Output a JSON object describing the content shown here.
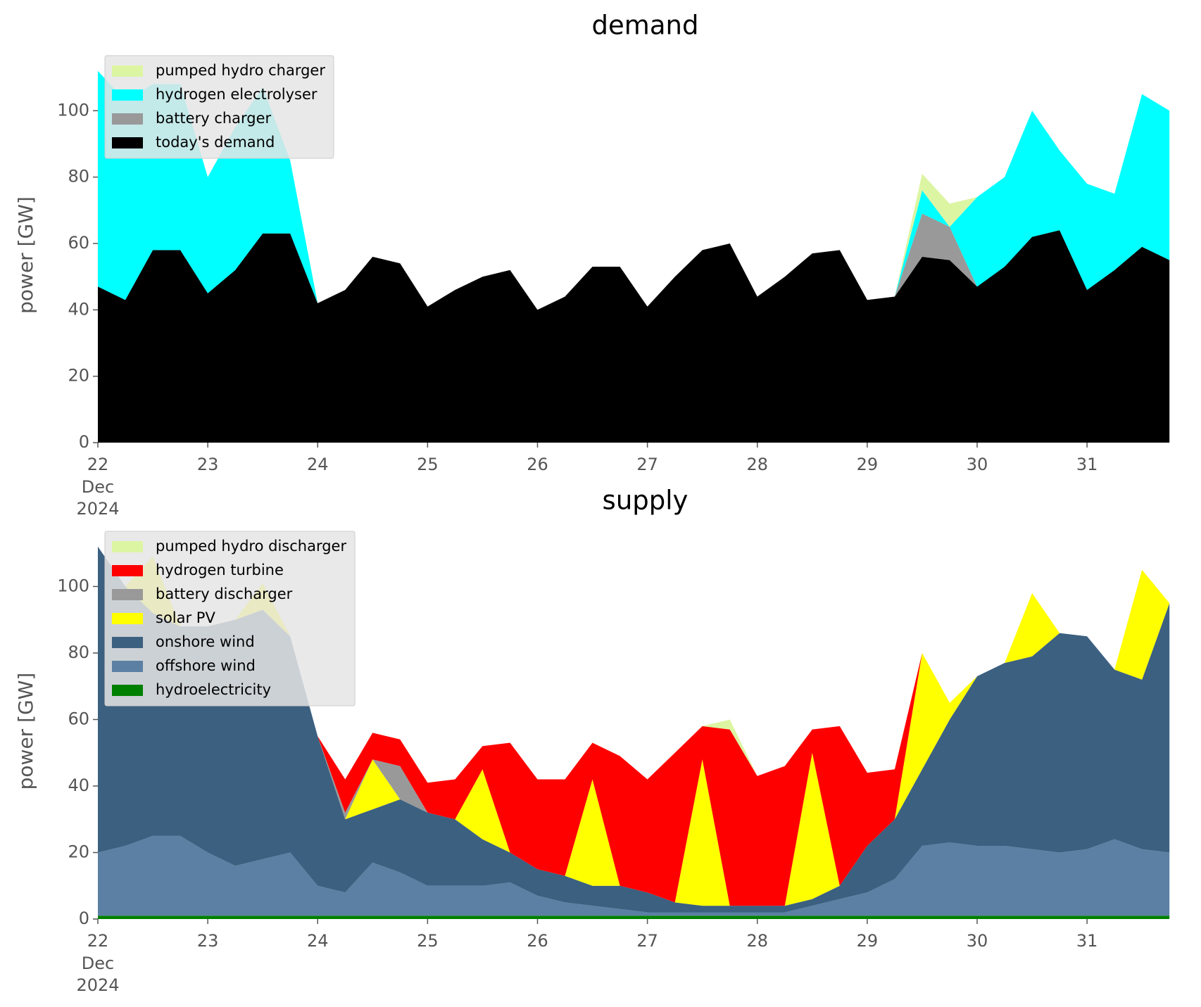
{
  "chart_data": [
    {
      "type": "area",
      "title": "demand",
      "ylabel": "power [GW]",
      "x": [
        22,
        22.25,
        22.5,
        22.75,
        23,
        23.25,
        23.5,
        23.75,
        24,
        24.25,
        24.5,
        24.75,
        25,
        25.25,
        25.5,
        25.75,
        26,
        26.25,
        26.5,
        26.75,
        27,
        27.25,
        27.5,
        27.75,
        28,
        28.25,
        28.5,
        28.75,
        29,
        29.25,
        29.5,
        29.75,
        30,
        30.25,
        30.5,
        30.75,
        31,
        31.25,
        31.5,
        31.75
      ],
      "xlim": [
        22,
        31.96
      ],
      "xticks": [
        22,
        23,
        24,
        25,
        26,
        27,
        28,
        29,
        30,
        31
      ],
      "x_sublabel": [
        "Dec",
        "2024"
      ],
      "ylim": [
        0,
        113
      ],
      "yticks": [
        0,
        20,
        40,
        60,
        80,
        100
      ],
      "legend": "upper left",
      "stacked": true,
      "series": [
        {
          "name": "today's demand",
          "color": "#000000",
          "values": [
            47,
            43,
            58,
            58,
            45,
            52,
            63,
            63,
            42,
            46,
            56,
            54,
            41,
            46,
            50,
            52,
            40,
            44,
            53,
            53,
            41,
            50,
            58,
            60,
            44,
            50,
            57,
            58,
            43,
            44,
            56,
            55,
            47,
            53,
            62,
            64,
            46,
            52,
            59,
            55
          ]
        },
        {
          "name": "battery charger",
          "color": "#999999",
          "values": [
            0,
            0,
            0,
            0,
            0,
            0,
            0,
            0,
            0,
            0,
            0,
            0,
            0,
            0,
            0,
            0,
            0,
            0,
            0,
            0,
            0,
            0,
            0,
            0,
            0,
            0,
            0,
            0,
            0,
            0,
            13,
            10,
            0,
            0,
            0,
            0,
            0,
            0,
            0,
            0
          ]
        },
        {
          "name": "hydrogen electrolyser",
          "color": "#00ffff",
          "values": [
            65,
            60,
            50,
            50,
            35,
            43,
            44,
            22,
            0,
            0,
            0,
            0,
            0,
            0,
            0,
            0,
            0,
            0,
            0,
            0,
            0,
            0,
            0,
            0,
            0,
            0,
            0,
            0,
            0,
            0,
            7,
            0,
            27,
            27,
            38,
            24,
            32,
            23,
            46,
            45
          ]
        },
        {
          "name": "pumped hydro charger",
          "color": "#dcf5a3",
          "values": [
            0,
            0,
            0,
            0,
            0,
            0,
            0,
            0,
            0,
            0,
            0,
            0,
            0,
            0,
            0,
            0,
            0,
            0,
            0,
            0,
            0,
            0,
            0,
            0,
            0,
            0,
            0,
            0,
            0,
            0,
            5,
            7,
            0,
            0,
            0,
            0,
            0,
            0,
            0,
            0
          ]
        }
      ]
    },
    {
      "type": "area",
      "title": "supply",
      "ylabel": "power [GW]",
      "x": [
        22,
        22.25,
        22.5,
        22.75,
        23,
        23.25,
        23.5,
        23.75,
        24,
        24.25,
        24.5,
        24.75,
        25,
        25.25,
        25.5,
        25.75,
        26,
        26.25,
        26.5,
        26.75,
        27,
        27.25,
        27.5,
        27.75,
        28,
        28.25,
        28.5,
        28.75,
        29,
        29.25,
        29.5,
        29.75,
        30,
        30.25,
        30.5,
        30.75,
        31,
        31.25,
        31.5,
        31.75
      ],
      "xlim": [
        22,
        31.96
      ],
      "xticks": [
        22,
        23,
        24,
        25,
        26,
        27,
        28,
        29,
        30,
        31
      ],
      "x_sublabel": [
        "Dec",
        "2024"
      ],
      "ylim": [
        0,
        113
      ],
      "yticks": [
        0,
        20,
        40,
        60,
        80,
        100
      ],
      "legend": "upper left",
      "stacked": true,
      "series": [
        {
          "name": "hydroelectricity",
          "color": "#008000",
          "values": [
            1,
            1,
            1,
            1,
            1,
            1,
            1,
            1,
            1,
            1,
            1,
            1,
            1,
            1,
            1,
            1,
            1,
            1,
            1,
            1,
            1,
            1,
            1,
            1,
            1,
            1,
            1,
            1,
            1,
            1,
            1,
            1,
            1,
            1,
            1,
            1,
            1,
            1,
            1,
            1
          ]
        },
        {
          "name": "offshore wind",
          "color": "#5b80a3",
          "values": [
            19,
            21,
            24,
            24,
            19,
            15,
            17,
            19,
            9,
            7,
            16,
            13,
            9,
            9,
            9,
            10,
            6,
            4,
            3,
            2,
            1,
            1,
            1,
            1,
            1,
            1,
            3,
            5,
            7,
            11,
            21,
            22,
            21,
            21,
            20,
            19,
            20,
            23,
            20,
            19
          ]
        },
        {
          "name": "onshore wind",
          "color": "#3c6080",
          "values": [
            92,
            78,
            67,
            63,
            68,
            74,
            75,
            65,
            45,
            22,
            16,
            22,
            22,
            20,
            14,
            9,
            8,
            8,
            6,
            7,
            6,
            3,
            2,
            2,
            2,
            2,
            2,
            4,
            14,
            18,
            23,
            37,
            51,
            55,
            58,
            66,
            64,
            51,
            51,
            75
          ]
        },
        {
          "name": "solar PV",
          "color": "#ffff00",
          "values": [
            0,
            0,
            17,
            0,
            0,
            0,
            8,
            0,
            0,
            0,
            15,
            0,
            0,
            0,
            21,
            0,
            0,
            0,
            32,
            0,
            0,
            0,
            44,
            0,
            0,
            0,
            44,
            0,
            0,
            0,
            35,
            5,
            0,
            0,
            19,
            0,
            0,
            0,
            33,
            0
          ]
        },
        {
          "name": "battery discharger",
          "color": "#999999",
          "values": [
            0,
            0,
            0,
            0,
            0,
            0,
            0,
            0,
            0,
            2,
            0,
            10,
            0,
            0,
            0,
            0,
            0,
            0,
            0,
            0,
            0,
            0,
            0,
            0,
            0,
            0,
            0,
            0,
            0,
            0,
            0,
            0,
            0,
            0,
            0,
            0,
            0,
            0,
            0,
            0
          ]
        },
        {
          "name": "hydrogen turbine",
          "color": "#ff0000",
          "values": [
            0,
            0,
            0,
            0,
            0,
            0,
            0,
            0,
            0,
            10,
            8,
            8,
            9,
            12,
            7,
            33,
            27,
            29,
            11,
            39,
            34,
            45,
            10,
            53,
            39,
            42,
            7,
            48,
            22,
            15,
            0,
            0,
            0,
            0,
            0,
            0,
            0,
            0,
            0,
            0
          ]
        },
        {
          "name": "pumped hydro discharger",
          "color": "#dcf5a3",
          "values": [
            0,
            0,
            0,
            0,
            0,
            0,
            0,
            0,
            0,
            0,
            0,
            0,
            0,
            0,
            0,
            0,
            0,
            0,
            0,
            0,
            0,
            0,
            0,
            3,
            0,
            0,
            0,
            0,
            0,
            0,
            0,
            0,
            0,
            0,
            0,
            0,
            0,
            0,
            0,
            0
          ]
        }
      ]
    }
  ]
}
